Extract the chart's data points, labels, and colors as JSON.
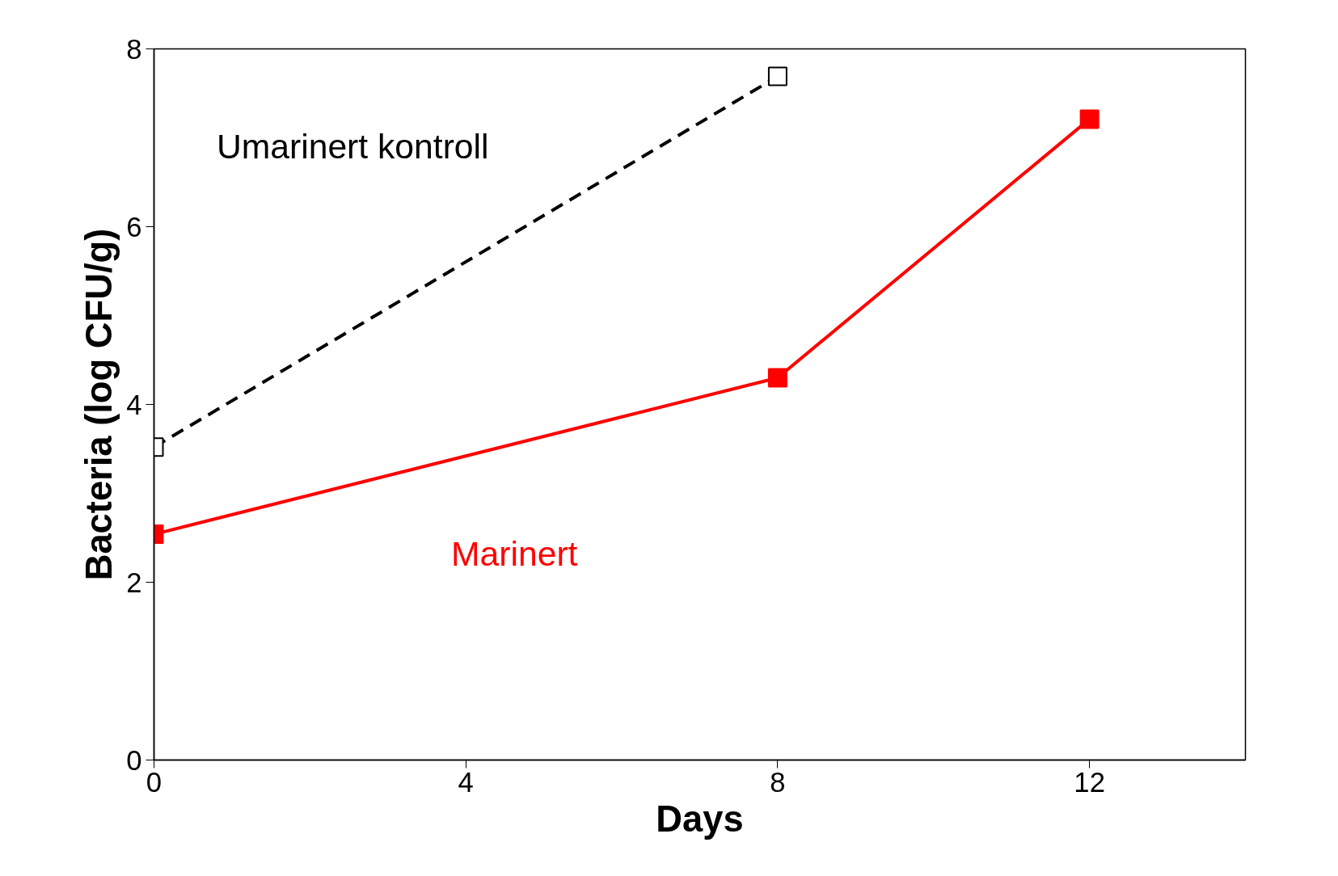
{
  "chart_data": {
    "type": "line",
    "xlabel": "Days",
    "ylabel": "Bacteria (log CFU/g)",
    "x": [
      0,
      8,
      12
    ],
    "series": [
      {
        "name": "Umarinert kontroll",
        "color": "#000000",
        "values": [
          3.52,
          7.69,
          null
        ],
        "line_style": "dashed"
      },
      {
        "name": "Marinert",
        "color": "#ff0000",
        "values": [
          2.54,
          4.3,
          7.21
        ],
        "line_style": "solid"
      }
    ],
    "xlim": [
      0,
      14
    ],
    "xticks": [
      0,
      4,
      8,
      12
    ],
    "ylim": [
      0,
      8
    ],
    "yticks": [
      0,
      2,
      4,
      6,
      8
    ],
    "marker": "square",
    "grid": false
  }
}
